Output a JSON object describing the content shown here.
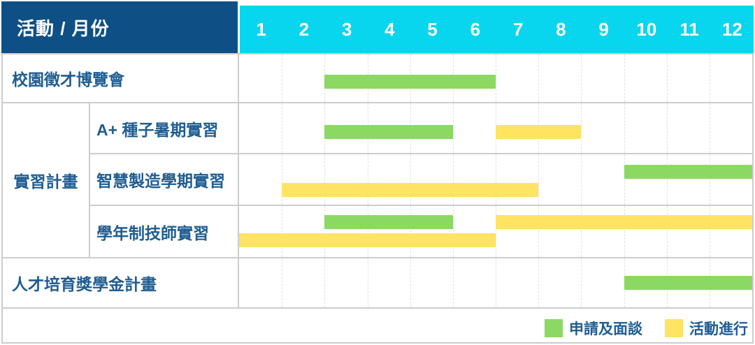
{
  "title": {
    "corner": "活動 / 月份"
  },
  "months": [
    "1",
    "2",
    "3",
    "4",
    "5",
    "6",
    "7",
    "8",
    "9",
    "10",
    "11",
    "12"
  ],
  "group": {
    "label": "實習計畫"
  },
  "rows": [
    {
      "label": "校園徵才博覽會",
      "group": null,
      "bars": [
        {
          "color": "green",
          "start": 3,
          "span": 4,
          "line": "middle"
        }
      ]
    },
    {
      "label": "A+ 種子暑期實習",
      "group": "實習計畫",
      "bars": [
        {
          "color": "green",
          "start": 3,
          "span": 3,
          "line": "middle"
        },
        {
          "color": "yellow",
          "start": 7,
          "span": 2,
          "line": "middle"
        }
      ]
    },
    {
      "label": "智慧製造學期實習",
      "group": "實習計畫",
      "bars": [
        {
          "color": "green",
          "start": 10,
          "span": 3,
          "line": "top"
        },
        {
          "color": "yellow",
          "start": 2,
          "span": 6,
          "line": "bottom"
        }
      ]
    },
    {
      "label": "學年制技師實習",
      "group": "實習計畫",
      "bars": [
        {
          "color": "green",
          "start": 3,
          "span": 3,
          "line": "top"
        },
        {
          "color": "yellow",
          "start": 7,
          "span": 6,
          "line": "top"
        },
        {
          "color": "yellow",
          "start": 1,
          "span": 6,
          "line": "bottom"
        }
      ]
    },
    {
      "label": "人才培育獎學金計畫",
      "group": null,
      "bars": [
        {
          "color": "green",
          "start": 10,
          "span": 3,
          "line": "middle"
        }
      ]
    }
  ],
  "legend": [
    {
      "key": "green",
      "label": "申請及面談"
    },
    {
      "key": "yellow",
      "label": "活動進行"
    }
  ],
  "colors": {
    "corner_bg": "#0e4f85",
    "months_bg": "#08d6ee",
    "header_text": "#ffffff",
    "label_text": "#1f5d92",
    "green": "#8bd962",
    "yellow": "#ffe363",
    "border": "#cccccc",
    "gridline": "#e0e0e0"
  },
  "chart_data": {
    "type": "bar",
    "subtype": "gantt-schedule",
    "title": "活動 / 月份",
    "xlabel": "月份",
    "ylabel": "活動",
    "x": {
      "ticks": [
        1,
        2,
        3,
        4,
        5,
        6,
        7,
        8,
        9,
        10,
        11,
        12
      ],
      "range": [
        1,
        12
      ]
    },
    "legend_entries": [
      "申請及面談",
      "活動進行"
    ],
    "legend_position": "bottom-right",
    "grid": true,
    "series": [
      {
        "activity": "校園徵才博覽會",
        "group": null,
        "phases": [
          {
            "phase": "申請及面談",
            "start_month": 3,
            "end_month": 6
          }
        ]
      },
      {
        "activity": "A+ 種子暑期實習",
        "group": "實習計畫",
        "phases": [
          {
            "phase": "申請及面談",
            "start_month": 3,
            "end_month": 5
          },
          {
            "phase": "活動進行",
            "start_month": 7,
            "end_month": 8
          }
        ]
      },
      {
        "activity": "智慧製造學期實習",
        "group": "實習計畫",
        "phases": [
          {
            "phase": "活動進行",
            "start_month": 2,
            "end_month": 7
          },
          {
            "phase": "申請及面談",
            "start_month": 10,
            "end_month": 12
          }
        ]
      },
      {
        "activity": "學年制技師實習",
        "group": "實習計畫",
        "phases": [
          {
            "phase": "申請及面談",
            "start_month": 3,
            "end_month": 5
          },
          {
            "phase": "活動進行",
            "start_month": 7,
            "end_month": 12
          },
          {
            "phase": "活動進行",
            "start_month": 1,
            "end_month": 6
          }
        ]
      },
      {
        "activity": "人才培育獎學金計畫",
        "group": null,
        "phases": [
          {
            "phase": "申請及面談",
            "start_month": 10,
            "end_month": 12
          }
        ]
      }
    ]
  }
}
